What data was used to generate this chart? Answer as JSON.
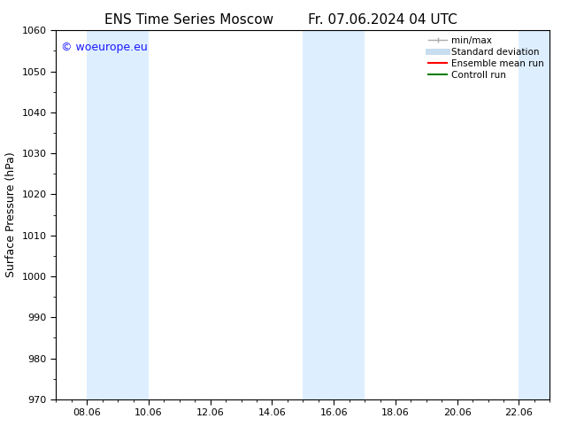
{
  "title": "ENS Time Series Moscow",
  "subtitle": "Fr. 07.06.2024 04 UTC",
  "ylabel": "Surface Pressure (hPa)",
  "ylim": [
    970,
    1060
  ],
  "yticks": [
    970,
    980,
    990,
    1000,
    1010,
    1020,
    1030,
    1040,
    1050,
    1060
  ],
  "xtick_labels": [
    "08.06",
    "10.06",
    "12.06",
    "14.06",
    "16.06",
    "18.06",
    "20.06",
    "22.06"
  ],
  "xtick_positions": [
    8,
    10,
    12,
    14,
    16,
    18,
    20,
    22
  ],
  "xlim": [
    7,
    23
  ],
  "bg_color": "#ffffff",
  "plot_bg_color": "#ffffff",
  "shaded_bands": [
    {
      "x_start": 8.0,
      "x_end": 10.0
    },
    {
      "x_start": 15.0,
      "x_end": 17.0
    },
    {
      "x_start": 22.0,
      "x_end": 23.0
    }
  ],
  "band_color": "#ddeeff",
  "watermark": "© woeurope.eu",
  "watermark_color": "#1a1aff",
  "legend_entries": [
    {
      "label": "min/max",
      "color": "#aaaaaa",
      "lw": 1.0,
      "ls": "-",
      "type": "errorbar"
    },
    {
      "label": "Standard deviation",
      "color": "#c8ddef",
      "lw": 5,
      "ls": "-",
      "type": "line"
    },
    {
      "label": "Ensemble mean run",
      "color": "#ff0000",
      "lw": 1.5,
      "ls": "-",
      "type": "line"
    },
    {
      "label": "Controll run",
      "color": "#008000",
      "lw": 1.5,
      "ls": "-",
      "type": "line"
    }
  ],
  "title_fontsize": 11,
  "subtitle_fontsize": 11,
  "axis_label_fontsize": 9,
  "tick_fontsize": 8,
  "legend_fontsize": 7.5,
  "watermark_fontsize": 9
}
